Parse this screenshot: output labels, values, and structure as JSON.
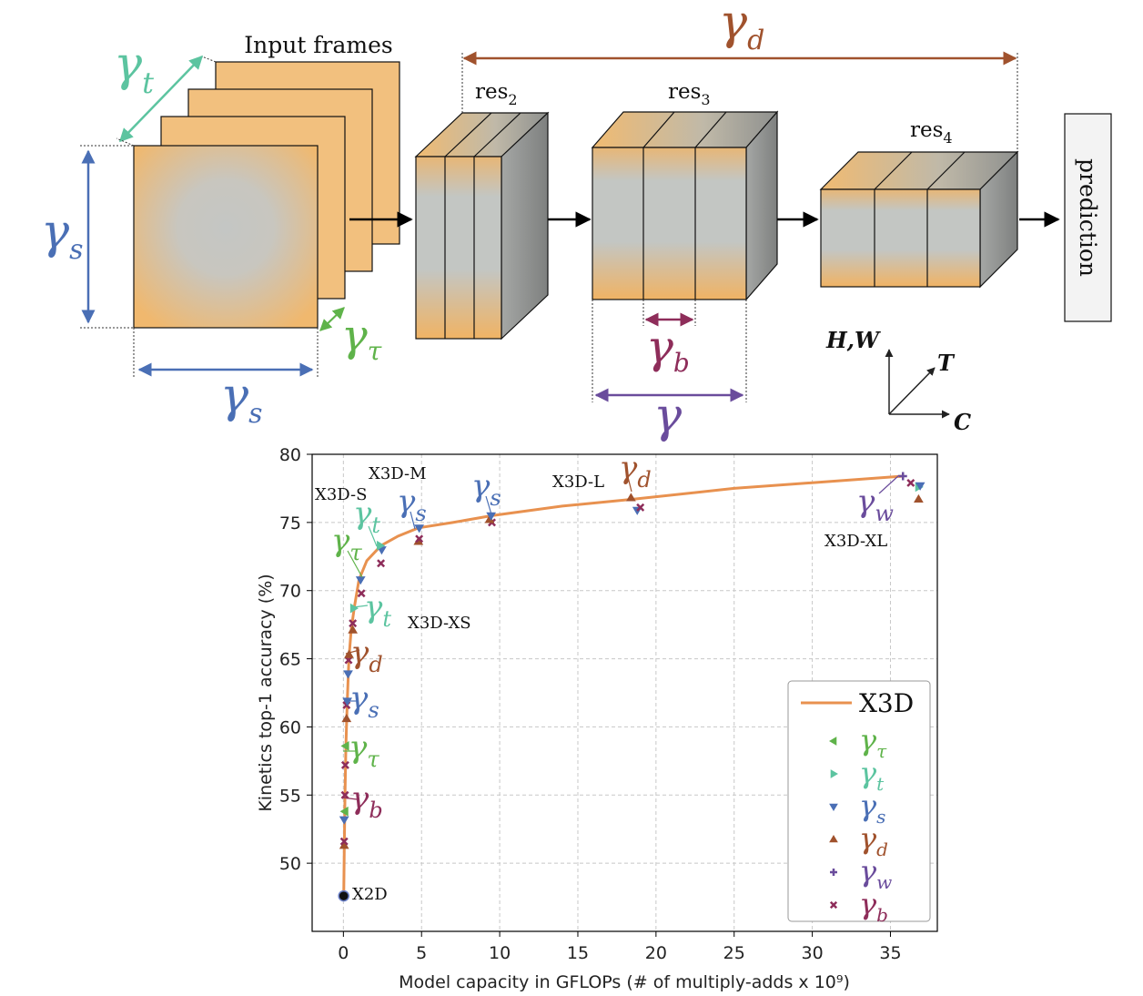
{
  "colors": {
    "gamma_tau": "#5fb34a",
    "gamma_t": "#5cc4a0",
    "gamma_s": "#4a6fb5",
    "gamma_d": "#a0522d",
    "gamma_w": "#6a4c9c",
    "gamma_b": "#8e2d5a",
    "gamma": "#6a4c9c",
    "curve": "#e8914f",
    "frame_orange": "#f2c07e",
    "block_gray": "#c3c6c3"
  },
  "diagram": {
    "input_frames_label": "Input frames",
    "res2_label": "res",
    "res2_sub": "2",
    "res3_label": "res",
    "res3_sub": "3",
    "res4_label": "res",
    "res4_sub": "4",
    "prediction_label": "prediction",
    "axis_hw": "H,W",
    "axis_t": "T",
    "axis_c": "C",
    "gamma_symbol": "γ",
    "sub_t": "t",
    "sub_s": "s",
    "sub_tau": "τ",
    "sub_d": "d",
    "sub_b": "b",
    "sub_w": "w"
  },
  "chart_data": {
    "type": "line",
    "xlabel": "Model capacity in GFLOPs (# of multiply-adds x 10⁹)",
    "ylabel": "Kinetics top-1 accuracy (%)",
    "xlim": [
      -2,
      38
    ],
    "ylim": [
      45,
      80
    ],
    "x_ticks": [
      0,
      5,
      10,
      15,
      20,
      25,
      30,
      35
    ],
    "y_ticks": [
      50,
      55,
      60,
      65,
      70,
      75,
      80
    ],
    "grid": true,
    "legend_placement": "bottom-right",
    "legend": [
      {
        "label": "X3D",
        "sub": "",
        "marker": "line",
        "color": "#e8914f"
      },
      {
        "label": "γ",
        "sub": "τ",
        "marker": "tri-left",
        "color": "#5fb34a"
      },
      {
        "label": "γ",
        "sub": "t",
        "marker": "tri-right",
        "color": "#5cc4a0"
      },
      {
        "label": "γ",
        "sub": "s",
        "marker": "tri-down",
        "color": "#4a6fb5"
      },
      {
        "label": "γ",
        "sub": "d",
        "marker": "tri-up",
        "color": "#a0522d"
      },
      {
        "label": "γ",
        "sub": "w",
        "marker": "plus",
        "color": "#6a4c9c"
      },
      {
        "label": "γ",
        "sub": "b",
        "marker": "x",
        "color": "#8e2d5a"
      }
    ],
    "series": [
      {
        "name": "X3D",
        "x": [
          0.02,
          0.06,
          0.1,
          0.16,
          0.25,
          0.35,
          0.5,
          0.7,
          1.0,
          1.5,
          2.4,
          3.5,
          4.8,
          7.0,
          9.5,
          14.0,
          18.5,
          25.0,
          35.8
        ],
        "y": [
          47.6,
          51.5,
          55.0,
          58.6,
          61.9,
          65.0,
          67.1,
          68.8,
          70.8,
          72.2,
          73.3,
          74.0,
          74.6,
          75.0,
          75.5,
          76.2,
          76.7,
          77.5,
          78.4
        ]
      }
    ],
    "points": [
      {
        "m": "tri-down",
        "c": "#4a6fb5",
        "x": 0.05,
        "y": 53.2
      },
      {
        "m": "tri-up",
        "c": "#a0522d",
        "x": 0.05,
        "y": 51.3
      },
      {
        "m": "x",
        "c": "#8e2d5a",
        "x": 0.05,
        "y": 51.6
      },
      {
        "m": "tri-left",
        "c": "#5fb34a",
        "x": 0.1,
        "y": 53.8
      },
      {
        "m": "x",
        "c": "#8e2d5a",
        "x": 0.1,
        "y": 55.0
      },
      {
        "m": "x",
        "c": "#8e2d5a",
        "x": 0.12,
        "y": 57.2
      },
      {
        "m": "tri-left",
        "c": "#5fb34a",
        "x": 0.15,
        "y": 58.6
      },
      {
        "m": "tri-up",
        "c": "#a0522d",
        "x": 0.2,
        "y": 60.6
      },
      {
        "m": "x",
        "c": "#8e2d5a",
        "x": 0.2,
        "y": 61.6
      },
      {
        "m": "tri-down",
        "c": "#4a6fb5",
        "x": 0.25,
        "y": 61.9
      },
      {
        "m": "tri-down",
        "c": "#4a6fb5",
        "x": 0.3,
        "y": 63.9
      },
      {
        "m": "x",
        "c": "#8e2d5a",
        "x": 0.33,
        "y": 64.9
      },
      {
        "m": "tri-up",
        "c": "#a0522d",
        "x": 0.36,
        "y": 65.3
      },
      {
        "m": "tri-up",
        "c": "#a0522d",
        "x": 0.6,
        "y": 67.1
      },
      {
        "m": "x",
        "c": "#8e2d5a",
        "x": 0.6,
        "y": 67.6
      },
      {
        "m": "tri-right",
        "c": "#5cc4a0",
        "x": 0.65,
        "y": 68.7
      },
      {
        "m": "x",
        "c": "#8e2d5a",
        "x": 1.15,
        "y": 69.8
      },
      {
        "m": "tri-down",
        "c": "#4a6fb5",
        "x": 1.1,
        "y": 70.8
      },
      {
        "m": "x",
        "c": "#8e2d5a",
        "x": 2.4,
        "y": 72.0
      },
      {
        "m": "tri-down",
        "c": "#4a6fb5",
        "x": 2.45,
        "y": 73.0
      },
      {
        "m": "tri-right",
        "c": "#5cc4a0",
        "x": 2.35,
        "y": 73.3
      },
      {
        "m": "tri-up",
        "c": "#a0522d",
        "x": 4.8,
        "y": 73.6
      },
      {
        "m": "x",
        "c": "#8e2d5a",
        "x": 4.85,
        "y": 73.8
      },
      {
        "m": "tri-down",
        "c": "#4a6fb5",
        "x": 4.85,
        "y": 74.6
      },
      {
        "m": "x",
        "c": "#8e2d5a",
        "x": 9.5,
        "y": 75.0
      },
      {
        "m": "tri-up",
        "c": "#a0522d",
        "x": 9.35,
        "y": 75.2
      },
      {
        "m": "tri-down",
        "c": "#4a6fb5",
        "x": 9.45,
        "y": 75.5
      },
      {
        "m": "tri-up",
        "c": "#a0522d",
        "x": 18.4,
        "y": 76.8
      },
      {
        "m": "tri-down",
        "c": "#4a6fb5",
        "x": 18.8,
        "y": 75.9
      },
      {
        "m": "x",
        "c": "#8e2d5a",
        "x": 19.0,
        "y": 76.1
      },
      {
        "m": "plus",
        "c": "#6a4c9c",
        "x": 35.8,
        "y": 78.4
      },
      {
        "m": "x",
        "c": "#8e2d5a",
        "x": 36.3,
        "y": 77.9
      },
      {
        "m": "tri-right",
        "c": "#5cc4a0",
        "x": 36.8,
        "y": 77.6
      },
      {
        "m": "tri-down",
        "c": "#4a6fb5",
        "x": 36.9,
        "y": 77.7
      },
      {
        "m": "tri-up",
        "c": "#a0522d",
        "x": 36.8,
        "y": 76.7
      },
      {
        "m": "x",
        "c": "#8e2d5a",
        "x": 0.02,
        "y": 47.6
      }
    ],
    "annotations": [
      {
        "text": "X3D-S",
        "x": 1.0,
        "y": 75.8
      },
      {
        "text": "X3D-M",
        "x": 4.0,
        "y": 78.3
      },
      {
        "text": "X3D-L",
        "x": 15.5,
        "y": 77.1
      },
      {
        "text": "X3D-XL",
        "x": 35.3,
        "y": 73.5
      },
      {
        "text": "X3D-XS",
        "x": 4.2,
        "y": 68.1
      },
      {
        "text": "X2D",
        "x": 1.5,
        "y": 47.5
      }
    ]
  }
}
